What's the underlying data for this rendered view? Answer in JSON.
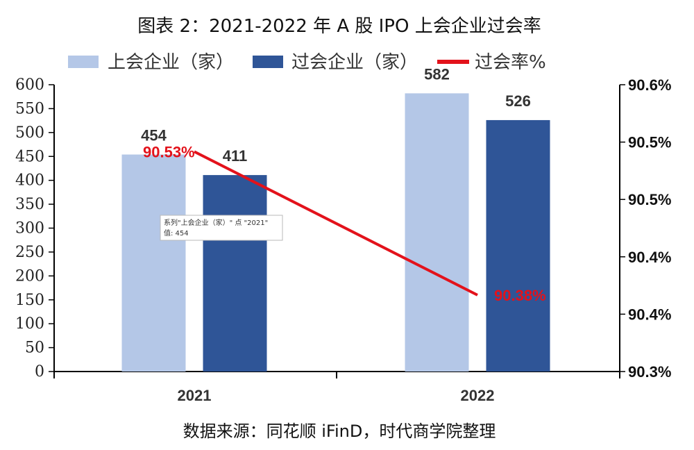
{
  "chart_data": {
    "type": "bar",
    "title": "图表 2：2021-2022 年 A 股 IPO 上会企业过会率",
    "categories": [
      "2021",
      "2022"
    ],
    "series": [
      {
        "name": "上会企业（家）",
        "kind": "bar",
        "values": [
          454,
          582
        ],
        "color": "#b4c7e7"
      },
      {
        "name": "过会企业（家）",
        "kind": "bar",
        "values": [
          411,
          526
        ],
        "color": "#2f5597"
      },
      {
        "name": "过会率%",
        "kind": "line",
        "axis": "right",
        "values": [
          90.53,
          90.38
        ],
        "labels": [
          "90.53%",
          "90.38%"
        ],
        "color": "#e3121b"
      }
    ],
    "y_left": {
      "min": 0,
      "max": 600,
      "step": 50,
      "ticks": [
        "0",
        "50",
        "100",
        "150",
        "200",
        "250",
        "300",
        "350",
        "400",
        "450",
        "500",
        "550",
        "600"
      ]
    },
    "y_right": {
      "min": 90.3,
      "max": 90.6,
      "ticks": [
        "90.3%",
        "90.4%",
        "90.4%",
        "90.5%",
        "90.5%",
        "90.6%"
      ]
    },
    "source": "数据来源：同花顺 iFinD，时代商学院整理",
    "tooltip": {
      "line1": "系列\"上会企业（家）\" 点 \"2021\"",
      "line2": "值: 454"
    }
  }
}
